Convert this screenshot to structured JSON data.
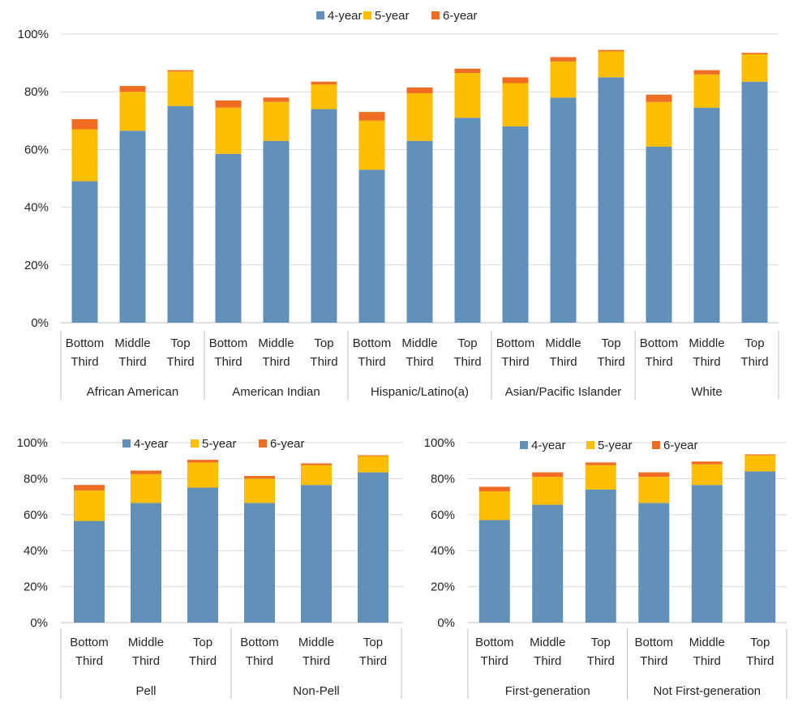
{
  "colors": {
    "four": "#6190b9",
    "five": "#fdbd00",
    "six": "#ef6c22",
    "grid": "#d9d9d9",
    "axis": "#bfbfbf"
  },
  "legend": [
    "4-year",
    "5-year",
    "6-year"
  ],
  "y_ticks": [
    "0%",
    "20%",
    "40%",
    "60%",
    "80%",
    "100%"
  ],
  "chart_data": [
    {
      "type": "bar",
      "stacked": true,
      "ylim": [
        0,
        100
      ],
      "grid": true,
      "legend_position": "top",
      "groups": [
        "African American",
        "American Indian",
        "Hispanic/Latino(a)",
        "Asian/Pacific Islander",
        "White"
      ],
      "subcategories": [
        [
          "Bottom",
          "Third"
        ],
        [
          "Middle",
          "Third"
        ],
        [
          "Top",
          "Third"
        ]
      ],
      "series": [
        {
          "name": "4-year",
          "values": [
            49,
            66.5,
            75,
            58.5,
            63,
            74,
            53,
            63,
            71,
            68,
            78,
            85,
            61,
            74.5,
            83.5
          ]
        },
        {
          "name": "5-year",
          "values": [
            18,
            13.5,
            12,
            16,
            13.5,
            8.5,
            17,
            16.5,
            15.5,
            15,
            12.5,
            9,
            15.5,
            11.5,
            9.5
          ]
        },
        {
          "name": "6-year",
          "values": [
            3.5,
            2,
            0.5,
            2.5,
            1.5,
            1,
            3,
            2,
            1.5,
            2,
            1.5,
            0.5,
            2.5,
            1.5,
            0.5
          ]
        }
      ]
    },
    {
      "type": "bar",
      "stacked": true,
      "ylim": [
        0,
        100
      ],
      "grid": true,
      "legend_position": "top",
      "groups": [
        "Pell",
        "Non-Pell"
      ],
      "subcategories": [
        [
          "Bottom",
          "Third"
        ],
        [
          "Middle",
          "Third"
        ],
        [
          "Top",
          "Third"
        ]
      ],
      "series": [
        {
          "name": "4-year",
          "values": [
            56.5,
            66.5,
            75,
            66.5,
            76.5,
            83.5
          ]
        },
        {
          "name": "5-year",
          "values": [
            17,
            16,
            14,
            13.5,
            11,
            9
          ]
        },
        {
          "name": "6-year",
          "values": [
            3,
            2,
            1.5,
            1.5,
            1,
            0.5
          ]
        }
      ]
    },
    {
      "type": "bar",
      "stacked": true,
      "ylim": [
        0,
        100
      ],
      "grid": true,
      "legend_position": "top",
      "groups": [
        "First-generation",
        "Not First-generation"
      ],
      "subcategories": [
        [
          "Bottom",
          "Third"
        ],
        [
          "Middle",
          "Third"
        ],
        [
          "Top",
          "Third"
        ]
      ],
      "series": [
        {
          "name": "4-year",
          "values": [
            57,
            65.5,
            74,
            66.5,
            76.5,
            84
          ]
        },
        {
          "name": "5-year",
          "values": [
            16,
            15.5,
            13.5,
            14.5,
            11.5,
            9
          ]
        },
        {
          "name": "6-year",
          "values": [
            2.5,
            2.5,
            1.5,
            2.5,
            1.5,
            0.5
          ]
        }
      ]
    }
  ]
}
